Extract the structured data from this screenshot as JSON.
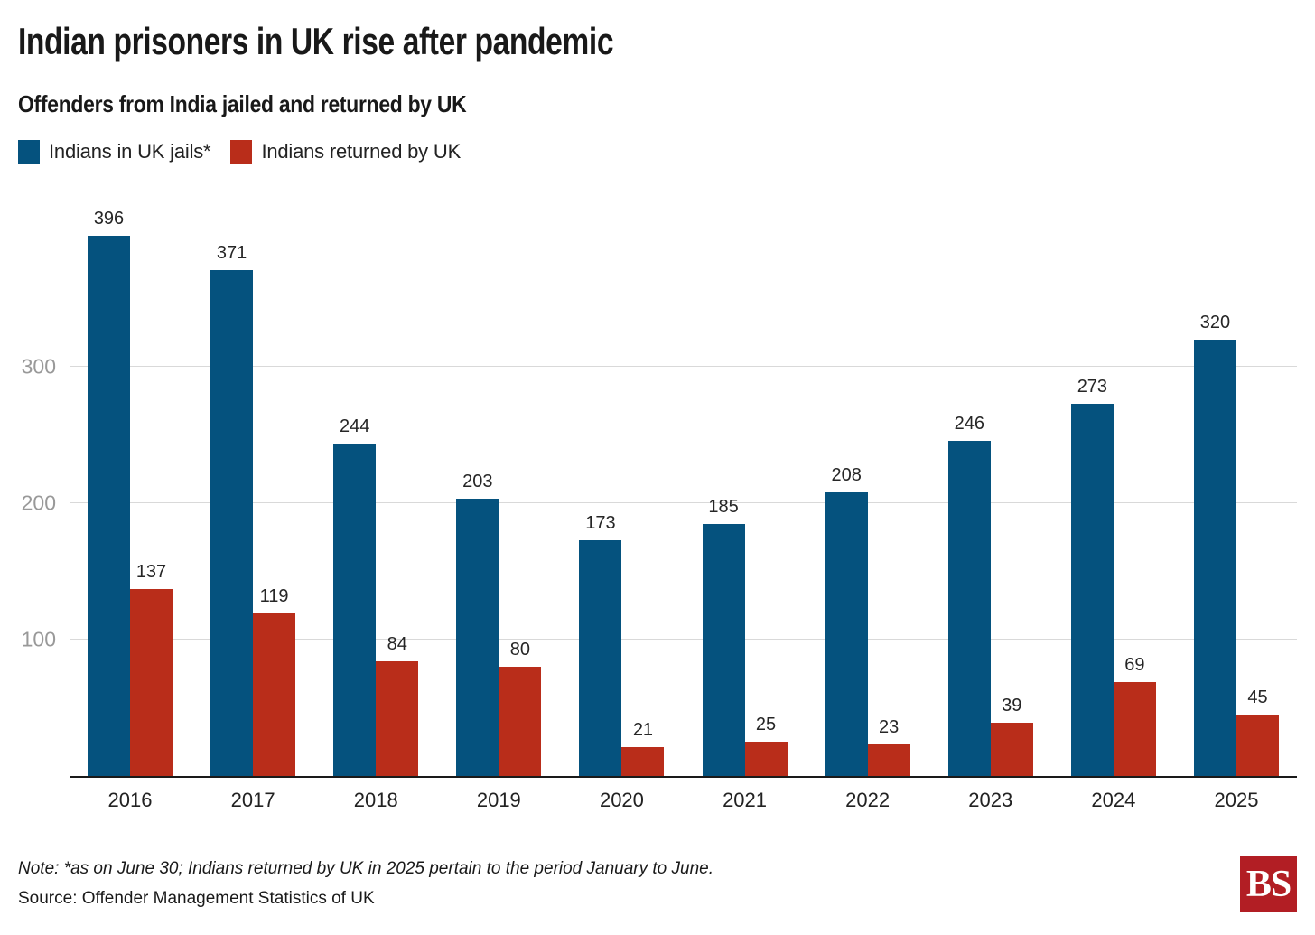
{
  "header": {
    "title": "Indian prisoners in UK rise after pandemic",
    "subtitle": "Offenders from India jailed and returned by UK"
  },
  "chart_data": {
    "type": "bar",
    "title": "Indian prisoners in UK rise after pandemic",
    "subtitle": "Offenders from India jailed and returned by UK",
    "categories": [
      "2016",
      "2017",
      "2018",
      "2019",
      "2020",
      "2021",
      "2022",
      "2023",
      "2024",
      "2025"
    ],
    "series": [
      {
        "name": "Indians in UK jails*",
        "color": "#05527e",
        "values": [
          396,
          371,
          244,
          203,
          173,
          185,
          208,
          246,
          273,
          320
        ]
      },
      {
        "name": "Indians returned by UK",
        "color": "#b92d1a",
        "values": [
          137,
          119,
          84,
          80,
          21,
          25,
          23,
          39,
          69,
          45
        ]
      }
    ],
    "xlabel": "",
    "ylabel": "",
    "ylim": [
      0,
      437
    ],
    "yticks": [
      100,
      200,
      300
    ],
    "grid": true,
    "legend_position": "top-left",
    "value_labels": true
  },
  "footer": {
    "note": "Note: *as on June 30; Indians returned by UK in 2025 pertain to the period January to June.",
    "source": "Source: Offender Management Statistics of UK",
    "logo_text": "BS"
  },
  "colors": {
    "bar_blue": "#05527e",
    "bar_red": "#b92d1a",
    "grid": "#d9d9d9",
    "axis": "#1a1a1a",
    "ytick_text": "#999999",
    "logo_bg": "#b21e24"
  }
}
